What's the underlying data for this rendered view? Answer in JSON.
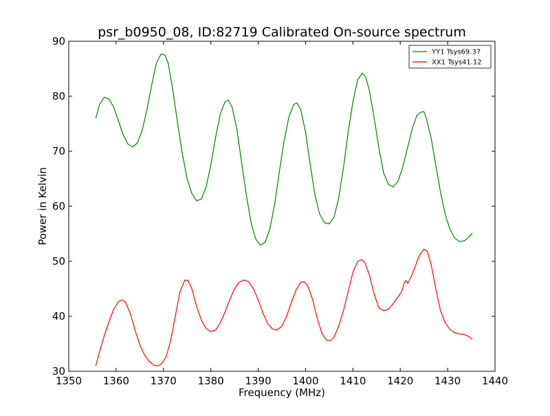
{
  "chart_data": {
    "type": "line",
    "title": "psr_b0950_08, ID:82719 Calibrated On-source spectrum",
    "xlabel": "Frequency (MHz)",
    "ylabel": "Power in Kelvin",
    "xlim": [
      1350,
      1440
    ],
    "ylim": [
      30,
      90
    ],
    "xticks": [
      1350,
      1360,
      1370,
      1380,
      1390,
      1400,
      1410,
      1420,
      1430,
      1440
    ],
    "yticks": [
      30,
      40,
      50,
      60,
      70,
      80,
      90
    ],
    "grid": false,
    "legend_position": "top-right",
    "series": [
      {
        "name": "YY1 Tsys69.37",
        "color": "#008000",
        "points": [
          [
            1355.7,
            76.0
          ],
          [
            1356.5,
            78.5
          ],
          [
            1357.5,
            79.8
          ],
          [
            1358.5,
            79.5
          ],
          [
            1359.5,
            78.0
          ],
          [
            1360.5,
            75.5
          ],
          [
            1361.5,
            73.0
          ],
          [
            1362.5,
            71.3
          ],
          [
            1363.5,
            70.8
          ],
          [
            1364.5,
            71.5
          ],
          [
            1365.5,
            73.8
          ],
          [
            1366.5,
            77.5
          ],
          [
            1367.5,
            82.0
          ],
          [
            1368.5,
            86.0
          ],
          [
            1369.5,
            87.7
          ],
          [
            1370.3,
            87.5
          ],
          [
            1371.0,
            86.0
          ],
          [
            1372.0,
            81.0
          ],
          [
            1373.0,
            75.0
          ],
          [
            1374.0,
            69.5
          ],
          [
            1375.0,
            65.0
          ],
          [
            1376.0,
            62.3
          ],
          [
            1377.0,
            61.0
          ],
          [
            1378.0,
            61.3
          ],
          [
            1379.0,
            63.5
          ],
          [
            1380.0,
            67.5
          ],
          [
            1381.0,
            72.5
          ],
          [
            1382.0,
            76.8
          ],
          [
            1383.0,
            79.0
          ],
          [
            1383.7,
            79.3
          ],
          [
            1384.5,
            78.0
          ],
          [
            1385.5,
            74.0
          ],
          [
            1386.5,
            68.0
          ],
          [
            1387.5,
            62.0
          ],
          [
            1388.5,
            57.0
          ],
          [
            1389.5,
            54.0
          ],
          [
            1390.5,
            52.9
          ],
          [
            1391.5,
            53.5
          ],
          [
            1392.5,
            56.0
          ],
          [
            1393.5,
            60.5
          ],
          [
            1394.5,
            66.5
          ],
          [
            1395.5,
            72.0
          ],
          [
            1396.5,
            76.3
          ],
          [
            1397.5,
            78.5
          ],
          [
            1398.2,
            78.8
          ],
          [
            1399.0,
            77.5
          ],
          [
            1400.0,
            73.5
          ],
          [
            1401.0,
            67.5
          ],
          [
            1402.0,
            62.0
          ],
          [
            1403.0,
            58.5
          ],
          [
            1404.0,
            57.0
          ],
          [
            1405.0,
            56.8
          ],
          [
            1406.0,
            58.0
          ],
          [
            1407.0,
            61.5
          ],
          [
            1408.0,
            67.0
          ],
          [
            1409.0,
            73.5
          ],
          [
            1410.0,
            79.0
          ],
          [
            1411.0,
            83.0
          ],
          [
            1412.0,
            84.2
          ],
          [
            1412.7,
            83.5
          ],
          [
            1413.5,
            81.0
          ],
          [
            1414.5,
            76.0
          ],
          [
            1415.5,
            70.5
          ],
          [
            1416.5,
            66.0
          ],
          [
            1417.5,
            64.0
          ],
          [
            1418.5,
            63.5
          ],
          [
            1419.5,
            64.5
          ],
          [
            1420.5,
            67.0
          ],
          [
            1421.5,
            70.5
          ],
          [
            1422.5,
            74.0
          ],
          [
            1423.5,
            76.5
          ],
          [
            1424.3,
            77.1
          ],
          [
            1425.0,
            77.2
          ],
          [
            1425.5,
            76.0
          ],
          [
            1426.5,
            72.5
          ],
          [
            1427.5,
            67.5
          ],
          [
            1428.5,
            62.5
          ],
          [
            1429.5,
            58.5
          ],
          [
            1430.5,
            55.8
          ],
          [
            1431.5,
            54.2
          ],
          [
            1432.5,
            53.6
          ],
          [
            1433.5,
            53.7
          ],
          [
            1434.5,
            54.4
          ],
          [
            1435.2,
            55.1
          ]
        ]
      },
      {
        "name": "XX1 Tsys41.12",
        "color": "#ff0000",
        "points": [
          [
            1355.7,
            31.0
          ],
          [
            1356.5,
            33.5
          ],
          [
            1357.5,
            36.5
          ],
          [
            1358.5,
            39.0
          ],
          [
            1359.5,
            41.3
          ],
          [
            1360.5,
            42.7
          ],
          [
            1361.3,
            43.0
          ],
          [
            1362.0,
            42.5
          ],
          [
            1363.0,
            40.5
          ],
          [
            1364.0,
            37.5
          ],
          [
            1365.0,
            34.8
          ],
          [
            1366.0,
            33.0
          ],
          [
            1367.0,
            31.8
          ],
          [
            1368.0,
            31.1
          ],
          [
            1368.8,
            31.0
          ],
          [
            1369.5,
            31.3
          ],
          [
            1370.5,
            32.5
          ],
          [
            1371.5,
            35.5
          ],
          [
            1372.5,
            40.0
          ],
          [
            1373.5,
            44.5
          ],
          [
            1374.5,
            46.6
          ],
          [
            1375.2,
            46.5
          ],
          [
            1376.0,
            45.0
          ],
          [
            1377.0,
            41.8
          ],
          [
            1378.0,
            39.3
          ],
          [
            1379.0,
            37.8
          ],
          [
            1380.0,
            37.2
          ],
          [
            1381.0,
            37.5
          ],
          [
            1382.0,
            38.8
          ],
          [
            1383.0,
            40.8
          ],
          [
            1384.0,
            43.0
          ],
          [
            1385.0,
            45.0
          ],
          [
            1386.0,
            46.2
          ],
          [
            1387.0,
            46.6
          ],
          [
            1388.0,
            46.3
          ],
          [
            1389.0,
            45.0
          ],
          [
            1390.0,
            43.0
          ],
          [
            1391.0,
            40.6
          ],
          [
            1392.0,
            38.7
          ],
          [
            1393.0,
            37.7
          ],
          [
            1394.0,
            37.5
          ],
          [
            1395.0,
            38.2
          ],
          [
            1396.0,
            40.0
          ],
          [
            1397.0,
            42.5
          ],
          [
            1398.0,
            44.8
          ],
          [
            1399.0,
            46.2
          ],
          [
            1399.7,
            46.3
          ],
          [
            1400.5,
            45.5
          ],
          [
            1401.5,
            43.0
          ],
          [
            1402.5,
            39.5
          ],
          [
            1403.5,
            36.8
          ],
          [
            1404.5,
            35.6
          ],
          [
            1405.3,
            35.6
          ],
          [
            1406.0,
            36.2
          ],
          [
            1407.0,
            38.2
          ],
          [
            1408.0,
            41.0
          ],
          [
            1409.0,
            44.5
          ],
          [
            1410.0,
            48.0
          ],
          [
            1411.0,
            50.0
          ],
          [
            1411.8,
            50.3
          ],
          [
            1412.5,
            49.8
          ],
          [
            1413.5,
            47.5
          ],
          [
            1414.5,
            44.0
          ],
          [
            1415.5,
            41.5
          ],
          [
            1416.5,
            41.0
          ],
          [
            1417.5,
            41.3
          ],
          [
            1418.5,
            42.3
          ],
          [
            1419.5,
            43.5
          ],
          [
            1420.3,
            44.5
          ],
          [
            1420.8,
            46.0
          ],
          [
            1421.2,
            46.5
          ],
          [
            1421.6,
            46.0
          ],
          [
            1422.2,
            47.0
          ],
          [
            1423.0,
            48.7
          ],
          [
            1424.0,
            51.0
          ],
          [
            1425.0,
            52.2
          ],
          [
            1425.7,
            51.8
          ],
          [
            1426.5,
            49.5
          ],
          [
            1427.5,
            45.0
          ],
          [
            1428.5,
            41.0
          ],
          [
            1429.5,
            38.8
          ],
          [
            1430.5,
            37.6
          ],
          [
            1431.5,
            37.0
          ],
          [
            1432.5,
            36.8
          ],
          [
            1433.5,
            36.7
          ],
          [
            1434.5,
            36.3
          ],
          [
            1435.2,
            35.8
          ]
        ]
      }
    ]
  }
}
